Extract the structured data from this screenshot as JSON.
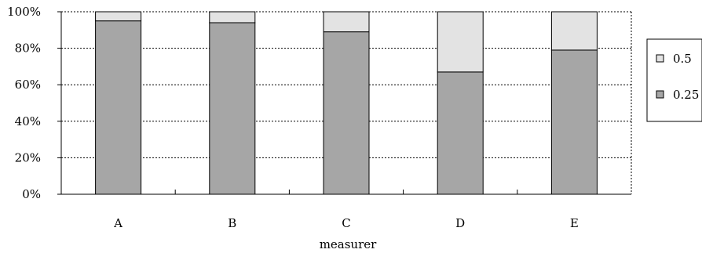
{
  "chart_data": {
    "type": "bar",
    "stacked": true,
    "percent_stacked": true,
    "categories": [
      "A",
      "B",
      "C",
      "D",
      "E"
    ],
    "series": [
      {
        "name": "0.25",
        "values": [
          95,
          94,
          89,
          67,
          79
        ],
        "color": "#a6a6a6"
      },
      {
        "name": "0.5",
        "values": [
          5,
          6,
          11,
          33,
          21
        ],
        "color": "#e3e3e3"
      }
    ],
    "title": "",
    "xlabel": "measurer",
    "ylabel": "",
    "ylim": [
      0,
      100
    ],
    "yticks": [
      "0%",
      "20%",
      "40%",
      "60%",
      "80%",
      "100%"
    ],
    "ytick_values": [
      0,
      20,
      40,
      60,
      80,
      100
    ],
    "grid": {
      "y": true,
      "style": "dotted"
    },
    "legend": {
      "position": "right",
      "entries": [
        "0.5",
        "0.25"
      ]
    }
  }
}
